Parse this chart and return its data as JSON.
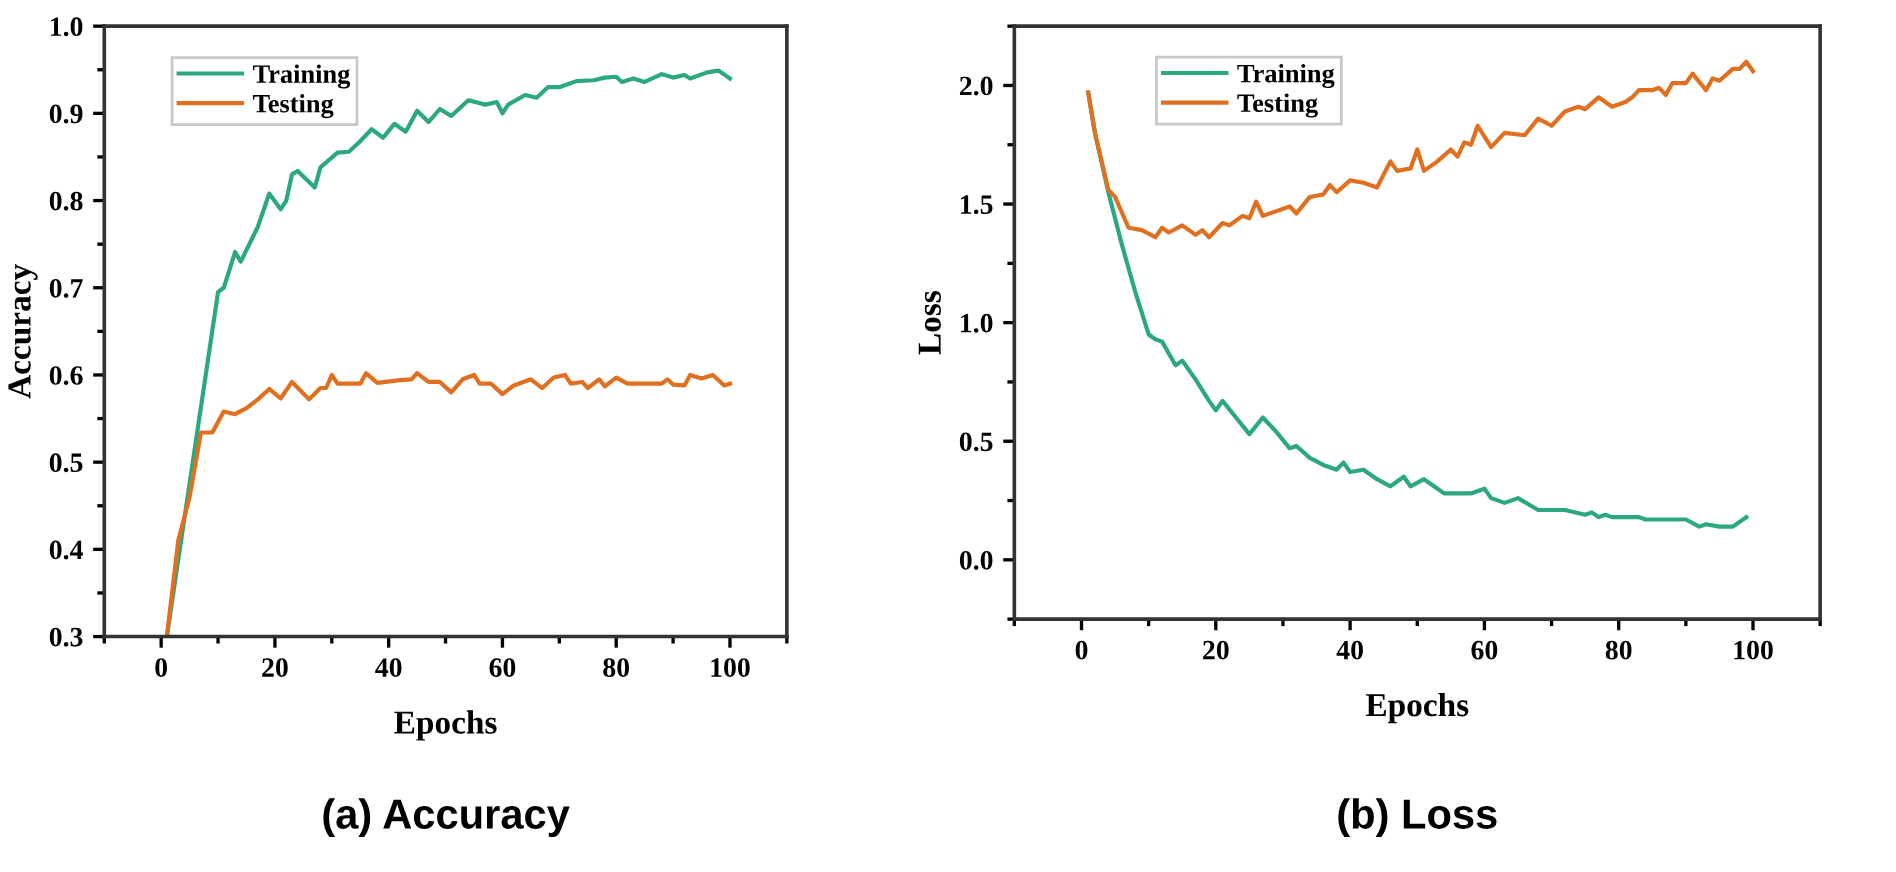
{
  "chart_data": [
    {
      "type": "line",
      "title": "(a) Accuracy",
      "xlabel": "Epochs",
      "ylabel": "Accuracy",
      "xlim": [
        -10,
        110
      ],
      "xticks": [
        0,
        20,
        40,
        60,
        80,
        100
      ],
      "ylim": [
        0.3,
        1.0
      ],
      "yticks": [
        {
          "value": 0.3,
          "label": "0.3"
        },
        {
          "value": 0.4,
          "label": "0.4"
        },
        {
          "value": 0.5,
          "label": "0.5"
        },
        {
          "value": 0.6,
          "label": "0.6"
        },
        {
          "value": 0.7,
          "label": "0.7"
        },
        {
          "value": 0.8,
          "label": "0.8"
        },
        {
          "value": 0.9,
          "label": "0.9"
        },
        {
          "value": 1.0,
          "label": "1.0"
        }
      ],
      "grid": false,
      "legend": "top left",
      "marker": "none",
      "line_style": "solid",
      "series": [
        {
          "name": "Training",
          "color": "#2ca87f",
          "x": [
            1,
            10,
            11,
            13,
            14,
            17,
            19,
            21,
            22,
            23,
            24,
            27,
            28,
            31,
            33,
            35,
            37,
            39,
            41,
            43,
            45,
            47,
            49,
            51,
            54,
            57,
            59,
            60,
            61,
            64,
            66,
            68,
            70,
            73,
            76,
            78,
            80,
            81,
            83,
            85,
            88,
            90,
            92,
            93,
            96,
            98,
            100
          ],
          "values": [
            0.3,
            0.695,
            0.7,
            0.741,
            0.73,
            0.77,
            0.808,
            0.79,
            0.8,
            0.83,
            0.834,
            0.815,
            0.838,
            0.855,
            0.856,
            0.868,
            0.882,
            0.872,
            0.888,
            0.879,
            0.903,
            0.89,
            0.905,
            0.897,
            0.915,
            0.91,
            0.913,
            0.9,
            0.91,
            0.921,
            0.918,
            0.93,
            0.93,
            0.937,
            0.938,
            0.941,
            0.942,
            0.936,
            0.94,
            0.936,
            0.945,
            0.941,
            0.944,
            0.94,
            0.947,
            0.949,
            0.94
          ]
        },
        {
          "name": "Testing",
          "color": "#e07020",
          "x": [
            1,
            3,
            5,
            7,
            9,
            11,
            13,
            15,
            17,
            19,
            21,
            23,
            26,
            28,
            29,
            30,
            31,
            35,
            36,
            38,
            42,
            44,
            45,
            47,
            49,
            51,
            53,
            55,
            56,
            58,
            60,
            62,
            65,
            67,
            69,
            71,
            72,
            74,
            75,
            77,
            78,
            80,
            82,
            88,
            89,
            90,
            92,
            93,
            95,
            97,
            99,
            100
          ],
          "values": [
            0.3,
            0.41,
            0.46,
            0.534,
            0.534,
            0.558,
            0.555,
            0.562,
            0.572,
            0.584,
            0.573,
            0.592,
            0.572,
            0.585,
            0.585,
            0.6,
            0.59,
            0.59,
            0.602,
            0.591,
            0.594,
            0.595,
            0.602,
            0.592,
            0.592,
            0.58,
            0.595,
            0.6,
            0.59,
            0.59,
            0.578,
            0.588,
            0.595,
            0.585,
            0.597,
            0.6,
            0.59,
            0.592,
            0.585,
            0.595,
            0.587,
            0.597,
            0.59,
            0.59,
            0.595,
            0.589,
            0.588,
            0.6,
            0.596,
            0.6,
            0.588,
            0.59
          ]
        }
      ]
    },
    {
      "type": "line",
      "title": "(b) Loss",
      "xlabel": "Epochs",
      "ylabel": "Loss",
      "xlim": [
        -10,
        110
      ],
      "xticks": [
        0,
        20,
        40,
        60,
        80,
        100
      ],
      "ylim": [
        -0.25,
        2.25
      ],
      "yticks": [
        {
          "value": 0.0,
          "label": "0.0"
        },
        {
          "value": 0.5,
          "label": "0.5"
        },
        {
          "value": 1.0,
          "label": "1.0"
        },
        {
          "value": 1.5,
          "label": "1.5"
        },
        {
          "value": 2.0,
          "label": "2.0"
        }
      ],
      "grid": false,
      "legend": "top left",
      "marker": "none",
      "line_style": "solid",
      "series": [
        {
          "name": "Training",
          "color": "#2ca87f",
          "x": [
            1,
            2,
            4,
            6,
            8,
            10,
            11,
            12,
            14,
            15,
            17,
            19,
            20,
            21,
            23,
            25,
            27,
            29,
            31,
            32,
            34,
            36,
            38,
            39,
            40,
            42,
            44,
            46,
            48,
            49,
            51,
            54,
            58,
            60,
            61,
            63,
            65,
            68,
            72,
            75,
            76,
            77,
            78,
            79,
            83,
            84,
            88,
            90,
            92,
            93,
            95,
            97,
            99
          ],
          "values": [
            1.97,
            1.8,
            1.55,
            1.33,
            1.13,
            0.95,
            0.93,
            0.92,
            0.82,
            0.84,
            0.76,
            0.67,
            0.63,
            0.67,
            0.6,
            0.53,
            0.6,
            0.54,
            0.47,
            0.48,
            0.43,
            0.4,
            0.38,
            0.41,
            0.37,
            0.38,
            0.34,
            0.31,
            0.35,
            0.31,
            0.34,
            0.28,
            0.28,
            0.3,
            0.26,
            0.24,
            0.26,
            0.21,
            0.21,
            0.19,
            0.2,
            0.18,
            0.19,
            0.18,
            0.18,
            0.17,
            0.17,
            0.17,
            0.14,
            0.15,
            0.14,
            0.14,
            0.18
          ]
        },
        {
          "name": "Testing",
          "color": "#e07020",
          "x": [
            1,
            2,
            4,
            5,
            7,
            9,
            11,
            12,
            13,
            15,
            17,
            18,
            19,
            21,
            22,
            24,
            25,
            26,
            27,
            31,
            32,
            34,
            36,
            37,
            38,
            40,
            42,
            44,
            46,
            47,
            49,
            50,
            51,
            53,
            55,
            56,
            57,
            58,
            59,
            61,
            63,
            66,
            68,
            70,
            72,
            74,
            75,
            77,
            79,
            81,
            82,
            83,
            85,
            86,
            87,
            88,
            90,
            91,
            93,
            94,
            95,
            97,
            98,
            99,
            100
          ],
          "values": [
            1.97,
            1.8,
            1.56,
            1.53,
            1.4,
            1.39,
            1.36,
            1.4,
            1.38,
            1.41,
            1.37,
            1.39,
            1.36,
            1.42,
            1.41,
            1.45,
            1.44,
            1.51,
            1.45,
            1.49,
            1.46,
            1.53,
            1.54,
            1.58,
            1.55,
            1.6,
            1.59,
            1.57,
            1.68,
            1.64,
            1.65,
            1.73,
            1.64,
            1.68,
            1.73,
            1.7,
            1.76,
            1.75,
            1.83,
            1.74,
            1.8,
            1.79,
            1.86,
            1.83,
            1.89,
            1.91,
            1.9,
            1.95,
            1.91,
            1.93,
            1.95,
            1.98,
            1.98,
            1.99,
            1.96,
            2.01,
            2.01,
            2.05,
            1.98,
            2.03,
            2.02,
            2.07,
            2.07,
            2.1,
            2.06
          ]
        }
      ]
    }
  ]
}
